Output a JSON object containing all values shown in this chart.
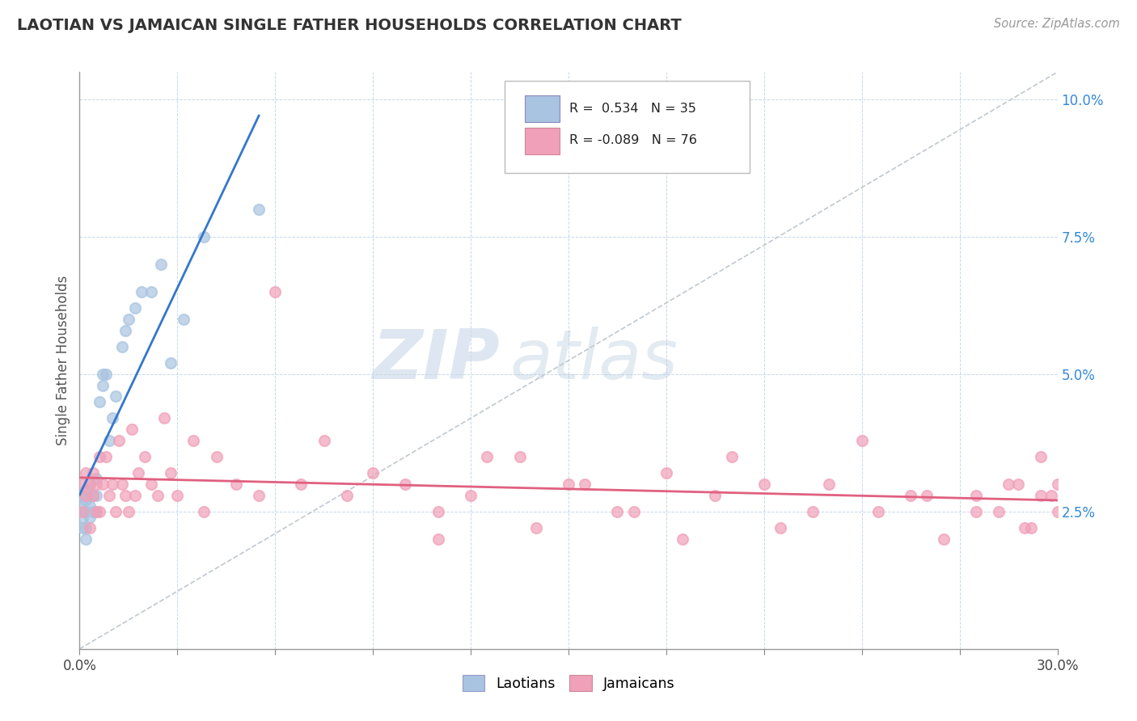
{
  "title": "LAOTIAN VS JAMAICAN SINGLE FATHER HOUSEHOLDS CORRELATION CHART",
  "source": "Source: ZipAtlas.com",
  "ylabel": "Single Father Households",
  "xmin": 0.0,
  "xmax": 0.3,
  "ymin": 0.0,
  "ymax": 0.105,
  "laotian_color": "#a8c4e0",
  "jamaican_color": "#f0a0b8",
  "laotian_line_color": "#3377cc",
  "jamaican_line_color": "#e06080",
  "dash_line_color": "#c0c8d0",
  "laotian_R": "0.534",
  "laotian_N": 35,
  "jamaican_R": "-0.089",
  "jamaican_N": 76,
  "watermark_zip": "ZIP",
  "watermark_atlas": "atlas",
  "laotian_x": [
    0.001,
    0.001,
    0.001,
    0.001,
    0.002,
    0.002,
    0.002,
    0.002,
    0.002,
    0.003,
    0.003,
    0.003,
    0.004,
    0.004,
    0.005,
    0.005,
    0.005,
    0.006,
    0.007,
    0.007,
    0.008,
    0.009,
    0.01,
    0.011,
    0.013,
    0.014,
    0.015,
    0.017,
    0.019,
    0.022,
    0.025,
    0.028,
    0.032,
    0.038,
    0.055
  ],
  "laotian_y": [
    0.022,
    0.024,
    0.026,
    0.028,
    0.02,
    0.022,
    0.025,
    0.027,
    0.029,
    0.024,
    0.026,
    0.03,
    0.025,
    0.028,
    0.025,
    0.028,
    0.031,
    0.045,
    0.048,
    0.05,
    0.05,
    0.038,
    0.042,
    0.046,
    0.055,
    0.058,
    0.06,
    0.062,
    0.065,
    0.065,
    0.07,
    0.052,
    0.06,
    0.075,
    0.08
  ],
  "jamaican_x": [
    0.001,
    0.001,
    0.002,
    0.002,
    0.003,
    0.003,
    0.004,
    0.004,
    0.005,
    0.005,
    0.006,
    0.006,
    0.007,
    0.008,
    0.009,
    0.01,
    0.011,
    0.012,
    0.013,
    0.014,
    0.015,
    0.016,
    0.017,
    0.018,
    0.02,
    0.022,
    0.024,
    0.026,
    0.028,
    0.03,
    0.035,
    0.038,
    0.042,
    0.048,
    0.055,
    0.06,
    0.068,
    0.075,
    0.082,
    0.09,
    0.1,
    0.11,
    0.12,
    0.135,
    0.15,
    0.165,
    0.18,
    0.195,
    0.21,
    0.225,
    0.24,
    0.26,
    0.275,
    0.285,
    0.29,
    0.295,
    0.3,
    0.3,
    0.298,
    0.295,
    0.292,
    0.288,
    0.282,
    0.275,
    0.265,
    0.255,
    0.245,
    0.23,
    0.215,
    0.2,
    0.185,
    0.17,
    0.155,
    0.14,
    0.125,
    0.11
  ],
  "jamaican_y": [
    0.03,
    0.025,
    0.032,
    0.028,
    0.022,
    0.03,
    0.028,
    0.032,
    0.025,
    0.03,
    0.035,
    0.025,
    0.03,
    0.035,
    0.028,
    0.03,
    0.025,
    0.038,
    0.03,
    0.028,
    0.025,
    0.04,
    0.028,
    0.032,
    0.035,
    0.03,
    0.028,
    0.042,
    0.032,
    0.028,
    0.038,
    0.025,
    0.035,
    0.03,
    0.028,
    0.065,
    0.03,
    0.038,
    0.028,
    0.032,
    0.03,
    0.025,
    0.028,
    0.035,
    0.03,
    0.025,
    0.032,
    0.028,
    0.03,
    0.025,
    0.038,
    0.028,
    0.025,
    0.03,
    0.022,
    0.028,
    0.03,
    0.025,
    0.028,
    0.035,
    0.022,
    0.03,
    0.025,
    0.028,
    0.02,
    0.028,
    0.025,
    0.03,
    0.022,
    0.035,
    0.02,
    0.025,
    0.03,
    0.022,
    0.035,
    0.02
  ]
}
